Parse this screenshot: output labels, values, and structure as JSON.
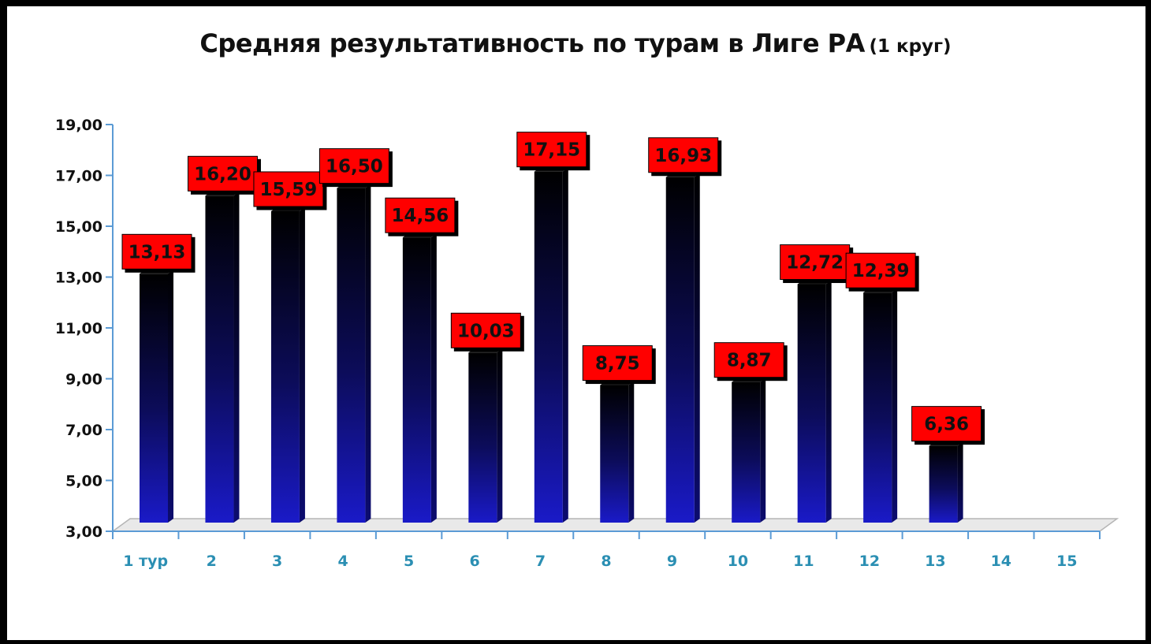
{
  "chart_data": {
    "type": "bar",
    "title": "Средняя результативность по турам в Лиге РА",
    "subtitle": "(1 круг)",
    "categories": [
      "1 тур",
      "2",
      "3",
      "4",
      "5",
      "6",
      "7",
      "8",
      "9",
      "10",
      "11",
      "12",
      "13",
      "14",
      "15"
    ],
    "values": [
      13.13,
      16.2,
      15.59,
      16.5,
      14.56,
      10.03,
      17.15,
      8.75,
      16.93,
      8.87,
      12.72,
      12.39,
      6.36,
      null,
      null
    ],
    "value_labels": [
      "13,13",
      "16,20",
      "15,59",
      "16,50",
      "14,56",
      "10,03",
      "17,15",
      "8,75",
      "16,93",
      "8,87",
      "12,72",
      "12,39",
      "6,36",
      "",
      ""
    ],
    "yticks": [
      "3,00",
      "5,00",
      "7,00",
      "9,00",
      "11,00",
      "13,00",
      "15,00",
      "17,00",
      "19,00"
    ],
    "ylim": [
      3,
      19
    ],
    "xlabel": "",
    "ylabel": "",
    "grid": false,
    "legend": "none",
    "colors": {
      "bar_top": "#000000",
      "bar_bottom": "#1a1ac8",
      "label_bg": "#ff0000",
      "axis": "#5b9bd5",
      "xtick_text": "#2b8fb3"
    }
  }
}
